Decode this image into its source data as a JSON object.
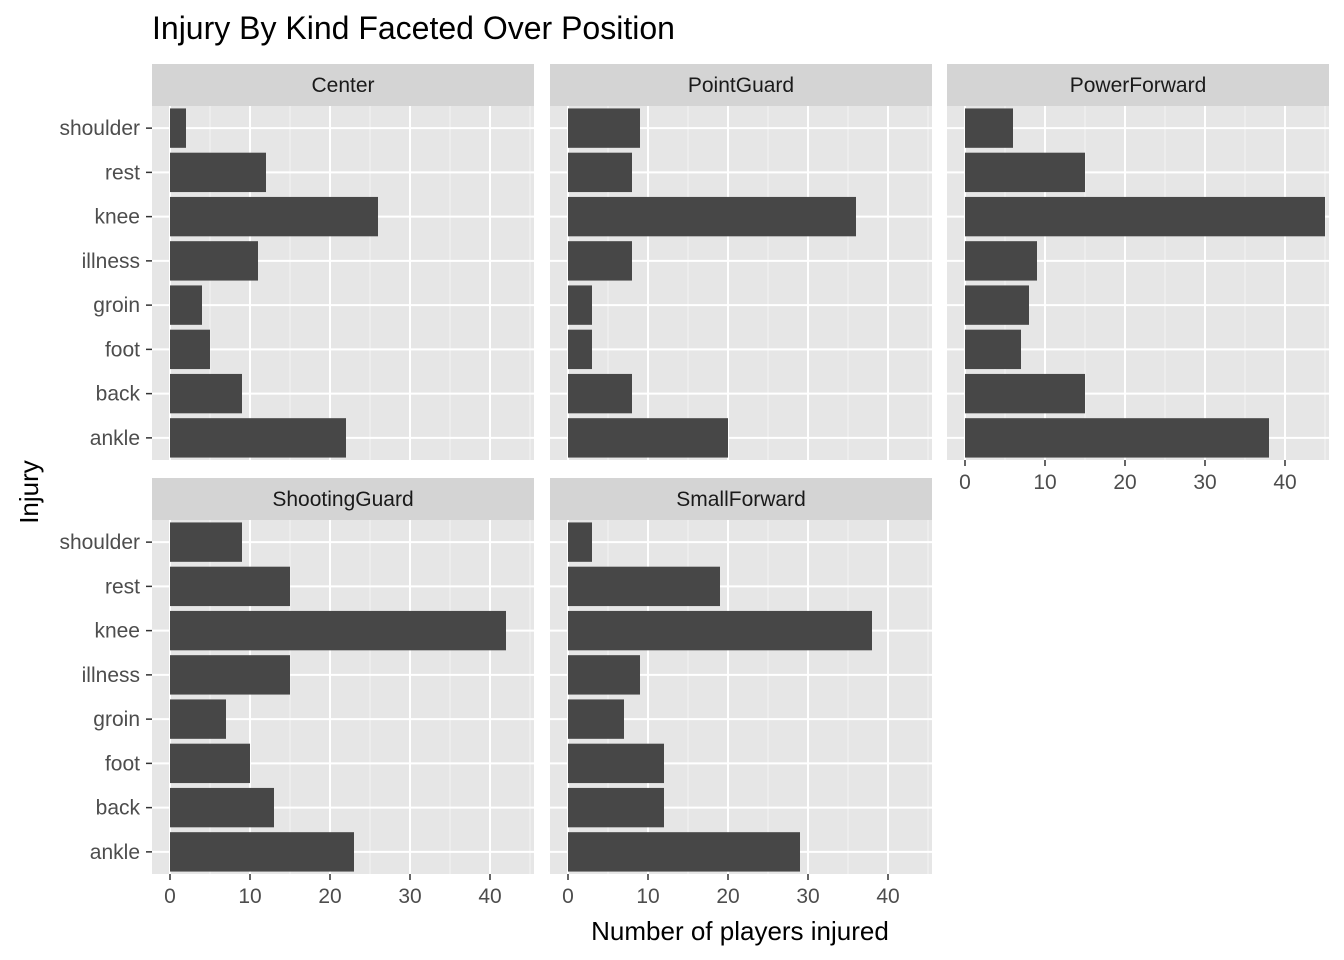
{
  "chart_data": {
    "type": "bar",
    "orientation": "horizontal",
    "title": "Injury By Kind Faceted Over Position",
    "xlabel": "Number of players injured",
    "ylabel": "Injury",
    "xlim": [
      0,
      47
    ],
    "x_ticks": [
      0,
      10,
      20,
      30,
      40
    ],
    "grid": true,
    "categories": [
      "ankle",
      "back",
      "foot",
      "groin",
      "illness",
      "knee",
      "rest",
      "shoulder"
    ],
    "facets": [
      {
        "name": "Center",
        "values": [
          22,
          9,
          5,
          4,
          11,
          26,
          12,
          2
        ]
      },
      {
        "name": "PointGuard",
        "values": [
          20,
          8,
          3,
          3,
          8,
          36,
          8,
          9
        ]
      },
      {
        "name": "PowerForward",
        "values": [
          38,
          15,
          7,
          8,
          9,
          45,
          15,
          6
        ]
      },
      {
        "name": "ShootingGuard",
        "values": [
          23,
          13,
          10,
          7,
          15,
          42,
          15,
          9
        ]
      },
      {
        "name": "SmallForward",
        "values": [
          29,
          12,
          12,
          7,
          9,
          38,
          19,
          3
        ]
      }
    ],
    "colors": {
      "bar": "#474747",
      "panel": "#e6e6e6",
      "strip": "#d4d4d4",
      "grid": "#ffffff",
      "text": "#1a1a1a",
      "axis_text": "#4d4d4d",
      "tick": "#333333"
    }
  }
}
